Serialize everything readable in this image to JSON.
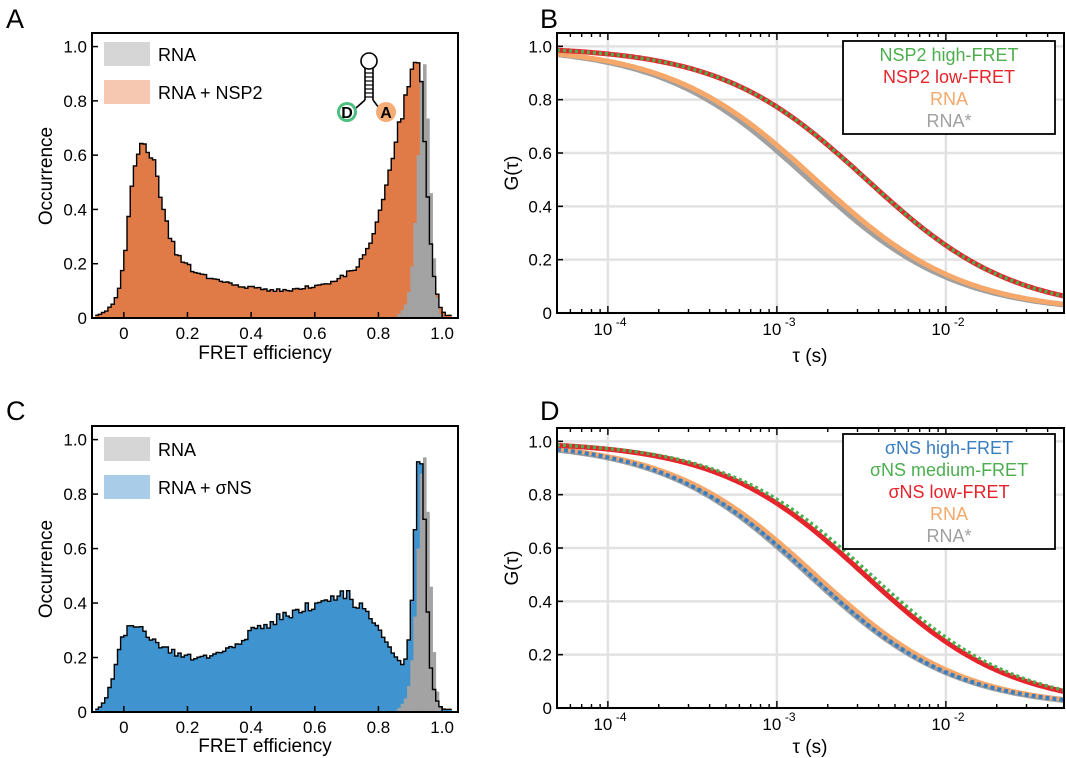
{
  "colors": {
    "rna_hist": "#a3a3a3",
    "rna_hist_legend": "#d6d6d6",
    "nsp2_hist": "#e07a47",
    "nsp2_hist_legend": "#f6c8b2",
    "sigma_hist": "#3f94d0",
    "sigma_hist_legend": "#a9cce9",
    "high_fret": "#4cae4f",
    "low_fret": "#e5242b",
    "rna_line": "#f6a86a",
    "rna_star_line": "#a0a0a0",
    "sigma_high_fret": "#3a7ebf",
    "donor": "#4cbe7f",
    "acceptor": "#f5ad78"
  },
  "panels": {
    "A": {
      "label": "A",
      "xlabel": "FRET efficiency",
      "ylabel": "Occurrence",
      "legend": [
        "RNA",
        "RNA + NSP2"
      ],
      "inset": {
        "donor_letter": "D",
        "acceptor_letter": "A",
        "icon": "rna-hairpin-icon"
      }
    },
    "B": {
      "label": "B",
      "xlabel": "τ (s)",
      "ylabel": "G(τ)",
      "legend": [
        "NSP2 high-FRET",
        "NSP2 low-FRET",
        "RNA",
        "RNA*"
      ]
    },
    "C": {
      "label": "C",
      "xlabel": "FRET efficiency",
      "ylabel": "Occurrence",
      "legend": [
        "RNA",
        "RNA + σNS"
      ]
    },
    "D": {
      "label": "D",
      "xlabel": "τ (s)",
      "ylabel": "G(τ)",
      "legend": [
        "σNS high-FRET",
        "σNS medium-FRET",
        "σNS low-FRET",
        "RNA",
        "RNA*"
      ]
    }
  },
  "chart_data": [
    {
      "panel": "A",
      "type": "bar",
      "xlabel": "FRET efficiency",
      "ylabel": "Occurrence",
      "xlim": [
        -0.1,
        1.05
      ],
      "ylim": [
        0,
        1.05
      ],
      "xticks": [
        0,
        0.2,
        0.4,
        0.6,
        0.8,
        1.0
      ],
      "xtick_labels": [
        "0",
        "0.2",
        "0.4",
        "0.6",
        "0.8",
        "1.0"
      ],
      "yticks": [
        0,
        0.2,
        0.4,
        0.6,
        0.8,
        1.0
      ],
      "ytick_labels": [
        "0",
        "0.2",
        "0.4",
        "0.6",
        "0.8",
        "1.0"
      ],
      "legend_position": "top-left",
      "series": [
        {
          "name": "RNA + NSP2",
          "profile": [
            [
              -0.08,
              0.01
            ],
            [
              -0.05,
              0.03
            ],
            [
              -0.03,
              0.06
            ],
            [
              -0.01,
              0.12
            ],
            [
              0.01,
              0.3
            ],
            [
              0.03,
              0.53
            ],
            [
              0.05,
              0.6
            ],
            [
              0.07,
              0.63
            ],
            [
              0.09,
              0.6
            ],
            [
              0.11,
              0.5
            ],
            [
              0.13,
              0.37
            ],
            [
              0.15,
              0.28
            ],
            [
              0.17,
              0.23
            ],
            [
              0.2,
              0.19
            ],
            [
              0.24,
              0.16
            ],
            [
              0.3,
              0.14
            ],
            [
              0.4,
              0.11
            ],
            [
              0.5,
              0.1
            ],
            [
              0.6,
              0.12
            ],
            [
              0.65,
              0.13
            ],
            [
              0.7,
              0.16
            ],
            [
              0.74,
              0.2
            ],
            [
              0.77,
              0.26
            ],
            [
              0.8,
              0.36
            ],
            [
              0.83,
              0.5
            ],
            [
              0.86,
              0.65
            ],
            [
              0.88,
              0.78
            ],
            [
              0.9,
              0.92
            ],
            [
              0.91,
              0.98
            ],
            [
              0.92,
              0.99
            ],
            [
              0.935,
              0.86
            ],
            [
              0.95,
              0.5
            ],
            [
              0.97,
              0.2
            ],
            [
              0.99,
              0.05
            ],
            [
              1.01,
              0.01
            ]
          ]
        },
        {
          "name": "RNA",
          "profile": [
            [
              0.85,
              0.0
            ],
            [
              0.87,
              0.02
            ],
            [
              0.89,
              0.06
            ],
            [
              0.9,
              0.13
            ],
            [
              0.91,
              0.25
            ],
            [
              0.92,
              0.45
            ],
            [
              0.93,
              0.75
            ],
            [
              0.94,
              1.0
            ],
            [
              0.95,
              0.87
            ],
            [
              0.96,
              0.6
            ],
            [
              0.97,
              0.32
            ],
            [
              0.98,
              0.12
            ],
            [
              0.99,
              0.03
            ],
            [
              1.0,
              0.0
            ]
          ]
        }
      ]
    },
    {
      "panel": "B",
      "type": "line",
      "xlabel": "τ (s)",
      "ylabel": "G(τ)",
      "xscale": "log",
      "xlim": [
        5e-05,
        0.05
      ],
      "ylim": [
        0,
        1.05
      ],
      "xticks": [
        0.0001,
        0.001,
        0.01
      ],
      "xtick_labels": [
        [
          "10",
          "-4"
        ],
        [
          "10",
          "-3"
        ],
        [
          "10",
          "-2"
        ]
      ],
      "yticks": [
        0,
        0.2,
        0.4,
        0.6,
        0.8,
        1.0
      ],
      "ytick_labels": [
        "0",
        "0.2",
        "0.4",
        "0.6",
        "0.8",
        "1.0"
      ],
      "grid": true,
      "legend_position": "top-right",
      "series": [
        {
          "name": "RNA*",
          "tau_half_s": 0.00155,
          "offset": 0.0,
          "style": "solid"
        },
        {
          "name": "RNA",
          "tau_half_s": 0.0017,
          "offset": 0.0,
          "style": "solid"
        },
        {
          "name": "NSP2 low-FRET",
          "tau_half_s": 0.0034,
          "offset": 0.0,
          "style": "solid"
        },
        {
          "name": "NSP2 high-FRET",
          "tau_half_s": 0.0034,
          "offset": 0.0,
          "style": "dotted"
        }
      ]
    },
    {
      "panel": "C",
      "type": "bar",
      "xlabel": "FRET efficiency",
      "ylabel": "Occurrence",
      "xlim": [
        -0.1,
        1.05
      ],
      "ylim": [
        0,
        1.05
      ],
      "xticks": [
        0,
        0.2,
        0.4,
        0.6,
        0.8,
        1.0
      ],
      "xtick_labels": [
        "0",
        "0.2",
        "0.4",
        "0.6",
        "0.8",
        "1.0"
      ],
      "yticks": [
        0,
        0.2,
        0.4,
        0.6,
        0.8,
        1.0
      ],
      "ytick_labels": [
        "0",
        "0.2",
        "0.4",
        "0.6",
        "0.8",
        "1.0"
      ],
      "legend_position": "top-left",
      "series": [
        {
          "name": "RNA + σNS",
          "profile": [
            [
              -0.08,
              0.01
            ],
            [
              -0.06,
              0.04
            ],
            [
              -0.04,
              0.1
            ],
            [
              -0.02,
              0.2
            ],
            [
              0.0,
              0.28
            ],
            [
              0.02,
              0.31
            ],
            [
              0.05,
              0.3
            ],
            [
              0.1,
              0.26
            ],
            [
              0.15,
              0.22
            ],
            [
              0.2,
              0.2
            ],
            [
              0.25,
              0.2
            ],
            [
              0.3,
              0.22
            ],
            [
              0.35,
              0.25
            ],
            [
              0.4,
              0.29
            ],
            [
              0.45,
              0.32
            ],
            [
              0.5,
              0.35
            ],
            [
              0.55,
              0.38
            ],
            [
              0.6,
              0.4
            ],
            [
              0.65,
              0.42
            ],
            [
              0.7,
              0.43
            ],
            [
              0.73,
              0.4
            ],
            [
              0.76,
              0.37
            ],
            [
              0.8,
              0.3
            ],
            [
              0.84,
              0.22
            ],
            [
              0.87,
              0.17
            ],
            [
              0.89,
              0.2
            ],
            [
              0.91,
              0.5
            ],
            [
              0.92,
              0.9
            ],
            [
              0.93,
              0.95
            ],
            [
              0.94,
              0.85
            ],
            [
              0.95,
              0.5
            ],
            [
              0.96,
              0.2
            ],
            [
              0.98,
              0.05
            ],
            [
              1.0,
              0.01
            ]
          ]
        },
        {
          "name": "RNA",
          "profile": [
            [
              0.85,
              0.0
            ],
            [
              0.87,
              0.02
            ],
            [
              0.89,
              0.06
            ],
            [
              0.9,
              0.13
            ],
            [
              0.91,
              0.25
            ],
            [
              0.92,
              0.45
            ],
            [
              0.93,
              0.75
            ],
            [
              0.94,
              1.0
            ],
            [
              0.95,
              0.87
            ],
            [
              0.96,
              0.6
            ],
            [
              0.97,
              0.32
            ],
            [
              0.98,
              0.12
            ],
            [
              0.99,
              0.03
            ],
            [
              1.0,
              0.0
            ]
          ]
        }
      ]
    },
    {
      "panel": "D",
      "type": "line",
      "xlabel": "τ (s)",
      "ylabel": "G(τ)",
      "xscale": "log",
      "xlim": [
        5e-05,
        0.05
      ],
      "ylim": [
        0,
        1.05
      ],
      "xticks": [
        0.0001,
        0.001,
        0.01
      ],
      "xtick_labels": [
        [
          "10",
          "-4"
        ],
        [
          "10",
          "-3"
        ],
        [
          "10",
          "-2"
        ]
      ],
      "yticks": [
        0,
        0.2,
        0.4,
        0.6,
        0.8,
        1.0
      ],
      "ytick_labels": [
        "0",
        "0.2",
        "0.4",
        "0.6",
        "0.8",
        "1.0"
      ],
      "grid": true,
      "legend_position": "top-right",
      "series": [
        {
          "name": "RNA*",
          "tau_half_s": 0.00155,
          "offset": 0.0,
          "style": "solid"
        },
        {
          "name": "RNA",
          "tau_half_s": 0.0017,
          "offset": 0.0,
          "style": "solid"
        },
        {
          "name": "σNS high-FRET",
          "tau_half_s": 0.0017,
          "offset": -0.02,
          "style": "dotted"
        },
        {
          "name": "σNS low-FRET",
          "tau_half_s": 0.0033,
          "offset": 0.0,
          "style": "solid"
        },
        {
          "name": "σNS medium-FRET",
          "tau_half_s": 0.0036,
          "offset": 0.0,
          "style": "dotted"
        }
      ]
    }
  ]
}
